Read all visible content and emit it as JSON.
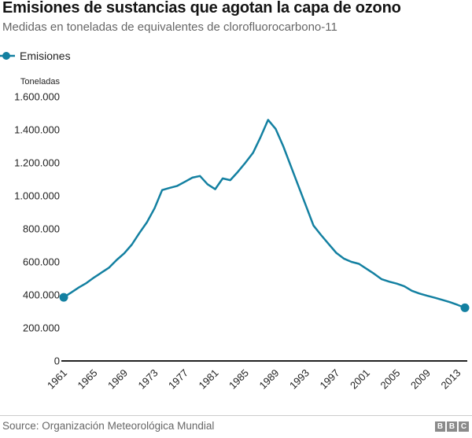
{
  "chart_data": {
    "type": "line",
    "title": "Emisiones de sustancias que agotan la capa de ozono",
    "subtitle": "Medidas en toneladas de equivalentes de clorofluorocarbono-11",
    "ylabel": "Toneladas",
    "xlabel": "",
    "grid": false,
    "legend_position": "top-left",
    "marker_style": "filled circles on first and last point",
    "line_color": "#1380A1",
    "axis_color": "#222222",
    "text_color": "#222222",
    "ylim": [
      0,
      1600000
    ],
    "yticks": [
      {
        "value": 0,
        "label": "0"
      },
      {
        "value": 200000,
        "label": "200.000"
      },
      {
        "value": 400000,
        "label": "400.000"
      },
      {
        "value": 600000,
        "label": "600.000"
      },
      {
        "value": 800000,
        "label": "800.000"
      },
      {
        "value": 1000000,
        "label": "1.000.000"
      },
      {
        "value": 1200000,
        "label": "1.200.000"
      },
      {
        "value": 1400000,
        "label": "1.400.000"
      },
      {
        "value": 1600000,
        "label": "1.600.000"
      }
    ],
    "xticks": [
      1961,
      1965,
      1969,
      1973,
      1977,
      1981,
      1985,
      1989,
      1993,
      1997,
      2001,
      2005,
      2009,
      2013
    ],
    "x": [
      1961,
      1962,
      1963,
      1964,
      1965,
      1966,
      1967,
      1968,
      1969,
      1970,
      1971,
      1972,
      1973,
      1974,
      1975,
      1976,
      1977,
      1978,
      1979,
      1980,
      1981,
      1982,
      1983,
      1984,
      1985,
      1986,
      1987,
      1988,
      1989,
      1990,
      1991,
      1992,
      1993,
      1994,
      1995,
      1996,
      1997,
      1998,
      1999,
      2000,
      2001,
      2002,
      2003,
      2004,
      2005,
      2006,
      2007,
      2008,
      2009,
      2010,
      2011,
      2012,
      2013,
      2014
    ],
    "series": [
      {
        "name": "Emisiones",
        "values": [
          385000,
          415000,
          445000,
          472000,
          505000,
          535000,
          565000,
          612000,
          652000,
          705000,
          775000,
          840000,
          925000,
          1035000,
          1048000,
          1060000,
          1085000,
          1110000,
          1120000,
          1070000,
          1040000,
          1105000,
          1095000,
          1145000,
          1200000,
          1260000,
          1355000,
          1460000,
          1405000,
          1300000,
          1180000,
          1060000,
          940000,
          820000,
          762000,
          708000,
          655000,
          620000,
          600000,
          588000,
          558000,
          528000,
          495000,
          480000,
          468000,
          452000,
          425000,
          408000,
          395000,
          383000,
          370000,
          356000,
          340000,
          322000
        ]
      }
    ]
  },
  "footer": {
    "source": "Source: Organización Meteorológica Mundial",
    "logo_letters": [
      "B",
      "B",
      "C"
    ]
  }
}
